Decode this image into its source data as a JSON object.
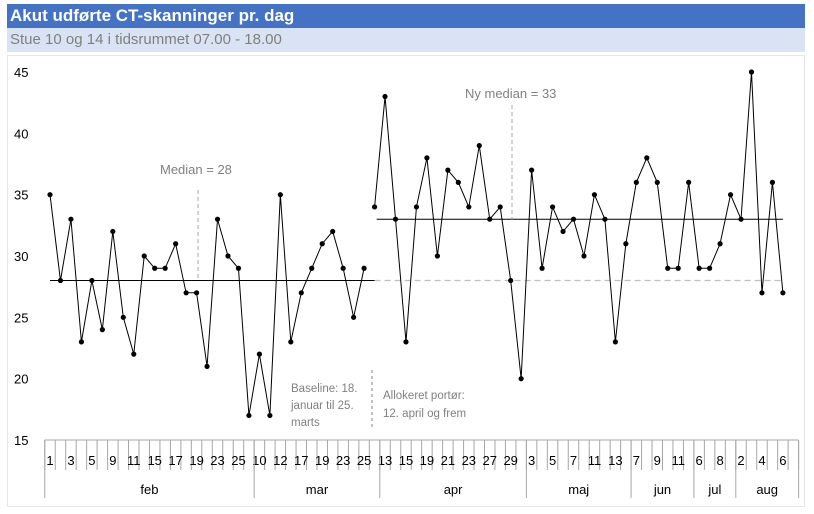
{
  "header": {
    "title": "Akut udførte CT-skanninger pr. dag",
    "subtitle": "Stue 10 og 14 i tidsrummet 07.00 - 18.00"
  },
  "chart_data": {
    "type": "line",
    "title": "Akut udførte CT-skanninger pr. dag",
    "ylim": [
      15,
      45
    ],
    "yticks": [
      15,
      20,
      25,
      30,
      35,
      40,
      45
    ],
    "tick_labels": [
      "1",
      "3",
      "5",
      "9",
      "11",
      "15",
      "17",
      "19",
      "23",
      "25",
      "10",
      "12",
      "17",
      "19",
      "23",
      "25",
      "13",
      "15",
      "19",
      "21",
      "23",
      "27",
      "29",
      "3",
      "5",
      "7",
      "11",
      "13",
      "7",
      "9",
      "11",
      "6",
      "8",
      "2",
      "4",
      "6"
    ],
    "months": [
      {
        "name": "feb",
        "labels": 10
      },
      {
        "name": "mar",
        "labels": 6
      },
      {
        "name": "apr",
        "labels": 7
      },
      {
        "name": "maj",
        "labels": 5
      },
      {
        "name": "jun",
        "labels": 3
      },
      {
        "name": "jul",
        "labels": 2
      },
      {
        "name": "aug",
        "labels": 3
      }
    ],
    "series": [
      {
        "name": "Baseline",
        "start_index": 0,
        "values": [
          35,
          28,
          33,
          23,
          28,
          24,
          32,
          25,
          22,
          30,
          29,
          29,
          31,
          27,
          27,
          21,
          33,
          30,
          29,
          17,
          22,
          17,
          35,
          23,
          27,
          29,
          31,
          32,
          29,
          25,
          29
        ]
      },
      {
        "name": "Allokeret portør",
        "start_index": 31,
        "values": [
          34,
          43,
          33,
          23,
          34,
          38,
          30,
          37,
          36,
          34,
          39,
          33,
          34,
          28,
          20,
          37,
          29,
          34,
          32,
          33,
          30,
          35,
          33,
          23,
          31,
          36,
          38,
          36,
          29,
          29,
          36,
          29,
          29,
          31,
          35,
          33,
          45,
          27,
          36,
          27
        ]
      }
    ],
    "medians": [
      {
        "label": "Median = 28",
        "value": 28
      },
      {
        "label": "Ny median = 33",
        "value": 33
      }
    ],
    "annotations": {
      "baseline": [
        "Baseline: 18.",
        "januar til 25.",
        "marts"
      ],
      "allocated": [
        "Allokeret portør:",
        "12. april og frem"
      ]
    },
    "colors": {
      "line": "#000000",
      "median_ext": "#bfbfbf",
      "annotation": "#808080",
      "title_bg": "#4472C4",
      "subtitle_bg": "#DAE3F3"
    }
  }
}
